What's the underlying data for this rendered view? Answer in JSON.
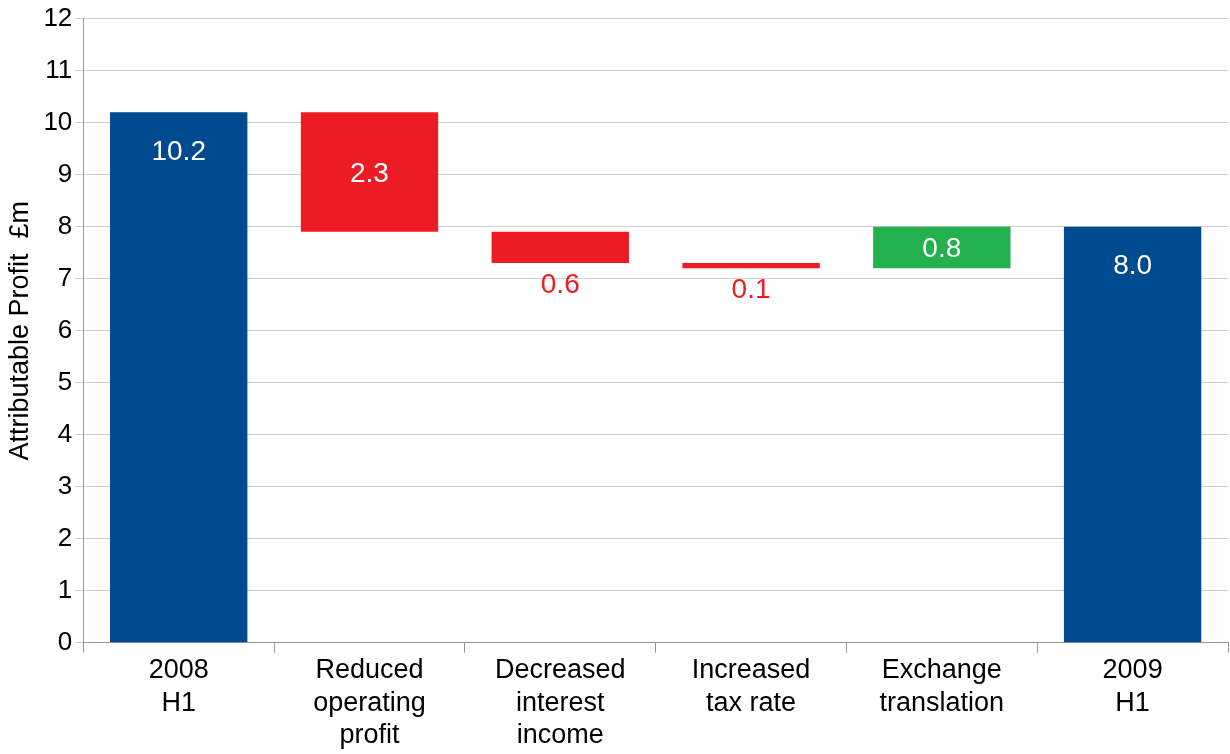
{
  "chart_data": {
    "type": "bar",
    "ylabel": "Attributable Profit  £m",
    "categories": [
      "2008\nH1",
      "Reduced\noperating\nprofit",
      "Decreased\ninterest\nincome",
      "Increased\ntax rate",
      "Exchange\ntranslation",
      "2009\nH1"
    ],
    "base": [
      0,
      10.2,
      7.9,
      7.3,
      7.2,
      0
    ],
    "values": [
      10.2,
      -2.3,
      -0.6,
      -0.1,
      0.8,
      8.0
    ],
    "value_labels": [
      "10.2",
      "2.3",
      "0.6",
      "0.1",
      "0.8",
      "8.0"
    ],
    "colors": [
      "#004a8f",
      "#ed1c24",
      "#ed1c24",
      "#ed1c24",
      "#22b14c",
      "#004a8f"
    ],
    "ylim": [
      0,
      12
    ],
    "yticks": [
      0,
      1,
      2,
      3,
      4,
      5,
      6,
      7,
      8,
      9,
      10,
      11,
      12
    ],
    "grid": "y",
    "legend": false
  }
}
